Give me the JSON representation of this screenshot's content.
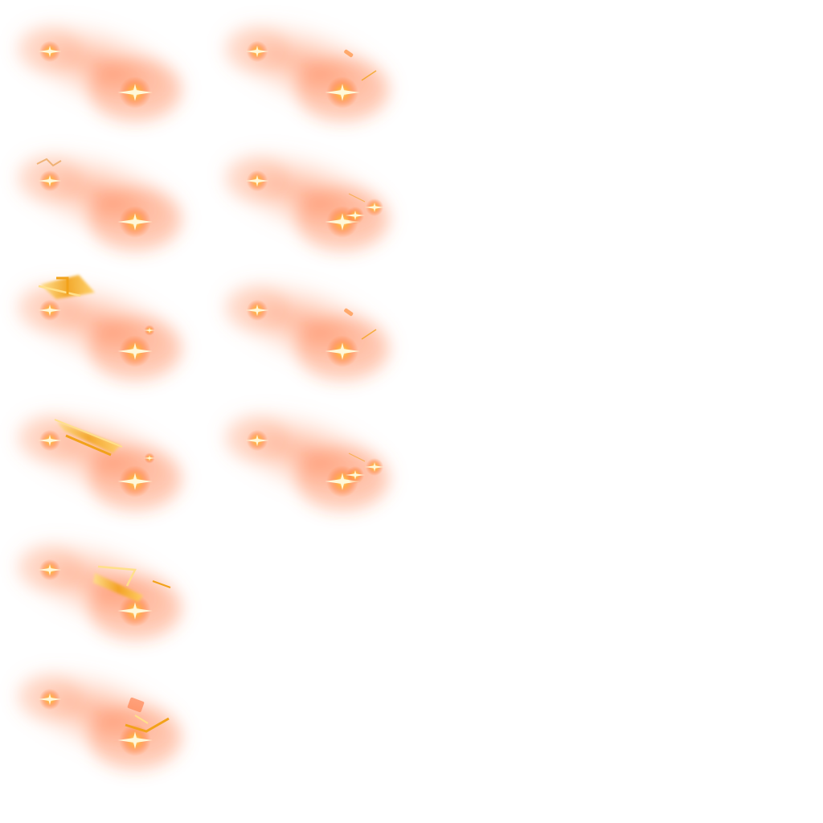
{
  "sprite_sheet": {
    "description_free": true,
    "background": "#ffffff",
    "columns": 2,
    "colors": {
      "halo": "#ff7a45",
      "core": "#ffd27a",
      "spark": "#fff8d8",
      "blade": "#f2a21a",
      "blade_edge": "#ffe08a"
    },
    "frames": [
      {
        "row": 0,
        "col": 0,
        "effect": "none"
      },
      {
        "row": 0,
        "col": 1,
        "effect": "fleck"
      },
      {
        "row": 1,
        "col": 0,
        "effect": "wisp"
      },
      {
        "row": 1,
        "col": 1,
        "effect": "sparks"
      },
      {
        "row": 2,
        "col": 0,
        "effect": "small-blade"
      },
      {
        "row": 2,
        "col": 1,
        "effect": "fleck"
      },
      {
        "row": 3,
        "col": 0,
        "effect": "long-blade"
      },
      {
        "row": 3,
        "col": 1,
        "effect": "sparks"
      },
      {
        "row": 4,
        "col": 0,
        "effect": "mid-blade"
      },
      {
        "row": 5,
        "col": 0,
        "effect": "shard"
      }
    ]
  }
}
